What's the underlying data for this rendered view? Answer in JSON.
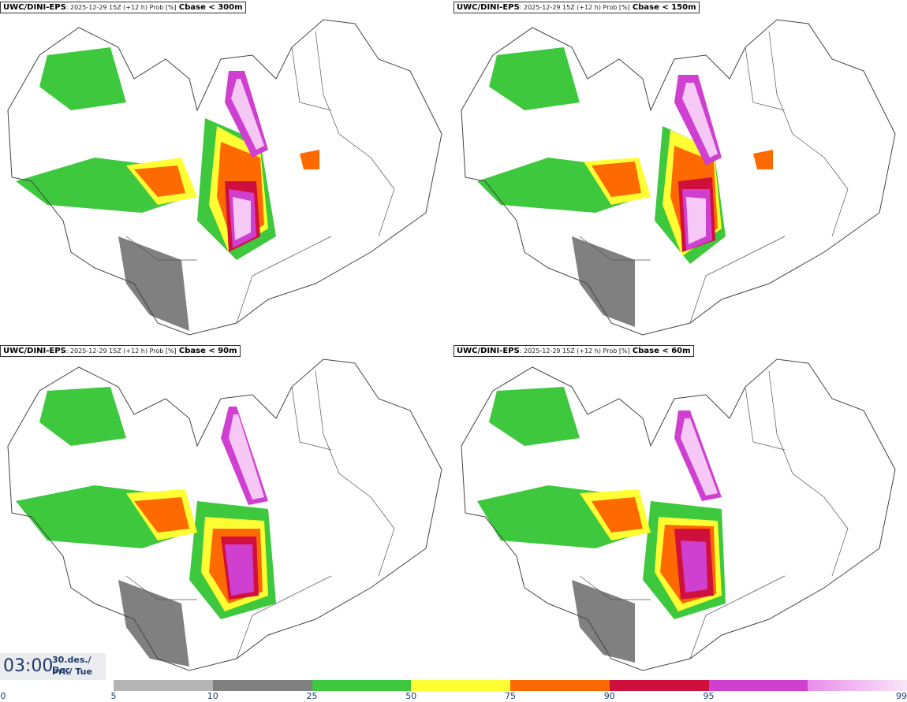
{
  "panels": [
    {
      "model": "UWC/DINI-EPS",
      "meta": ": 2025-12-29 15Z (+12 h) Prob [%]",
      "variable": "Cbase < 300m"
    },
    {
      "model": "UWC/DINI-EPS",
      "meta": ": 2025-12-29 15Z (+12 h) Prob [%]",
      "variable": "Cbase < 150m"
    },
    {
      "model": "UWC/DINI-EPS",
      "meta": ": 2025-12-29 15Z (+12 h) Prob [%]",
      "variable": "Cbase < 90m"
    },
    {
      "model": "UWC/DINI-EPS",
      "meta": ": 2025-12-29 15Z (+12 h) Prob [%]",
      "variable": "Cbase < 60m"
    }
  ],
  "valid_time": {
    "clock": "03:00",
    "date_line": "30.des./ Dec",
    "weekday_line": "Þri./ Tue"
  },
  "legend": {
    "ticks": [
      "0",
      "5",
      "10",
      "25",
      "50",
      "75",
      "90",
      "95",
      "99"
    ],
    "colors": [
      "#b4b4b4",
      "#808080",
      "#3dc83d",
      "#ffff33",
      "#ff6a00",
      "#d0103c",
      "#d040d0",
      "#f6c8f6"
    ]
  }
}
